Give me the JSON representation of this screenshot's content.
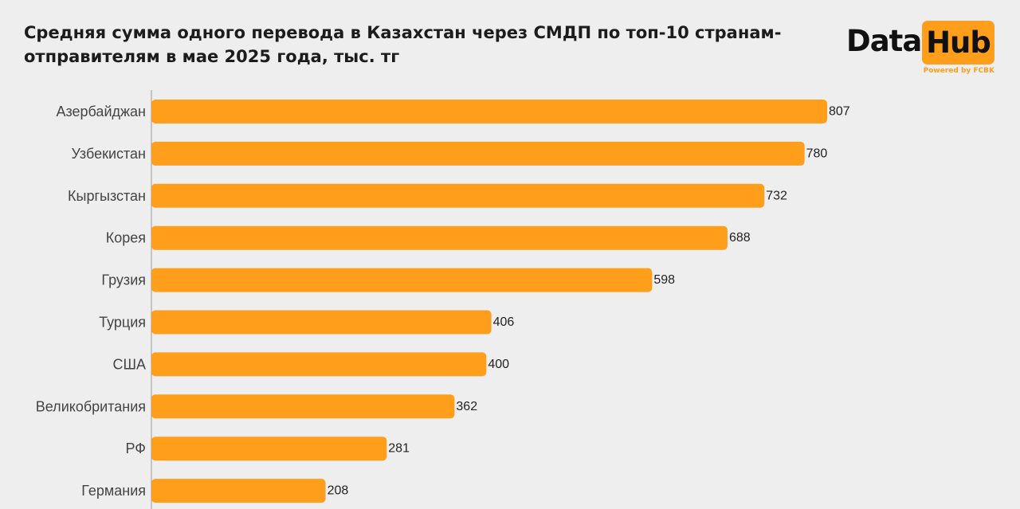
{
  "header": {
    "title_line1": "Средняя сумма одного перевода в Казахстан через СМДП по топ-10 странам-",
    "title_line2": "отправителям в мае 2025 года, тыс. тг"
  },
  "logo": {
    "word1": "Data",
    "word2": "Hub",
    "powered": "Powered by FCBK",
    "accent_color": "#ff9e1b"
  },
  "colors": {
    "bar": "#ff9e1b",
    "background": "#eeeeee",
    "axis": "#999999"
  },
  "chart_data": {
    "type": "bar",
    "orientation": "horizontal",
    "title": "Средняя сумма одного перевода в Казахстан через СМДП по топ-10 странам-отправителям в мае 2025 года, тыс. тг",
    "categories": [
      "Азербайджан",
      "Узбекистан",
      "Кыргызстан",
      "Корея",
      "Грузия",
      "Турция",
      "США",
      "Великобритания",
      "РФ",
      "Германия"
    ],
    "values": [
      807,
      780,
      732,
      688,
      598,
      406,
      400,
      362,
      281,
      208
    ],
    "xlabel": "",
    "ylabel": "",
    "xlim": [
      0,
      807
    ],
    "grid": false,
    "data_labels": true
  }
}
